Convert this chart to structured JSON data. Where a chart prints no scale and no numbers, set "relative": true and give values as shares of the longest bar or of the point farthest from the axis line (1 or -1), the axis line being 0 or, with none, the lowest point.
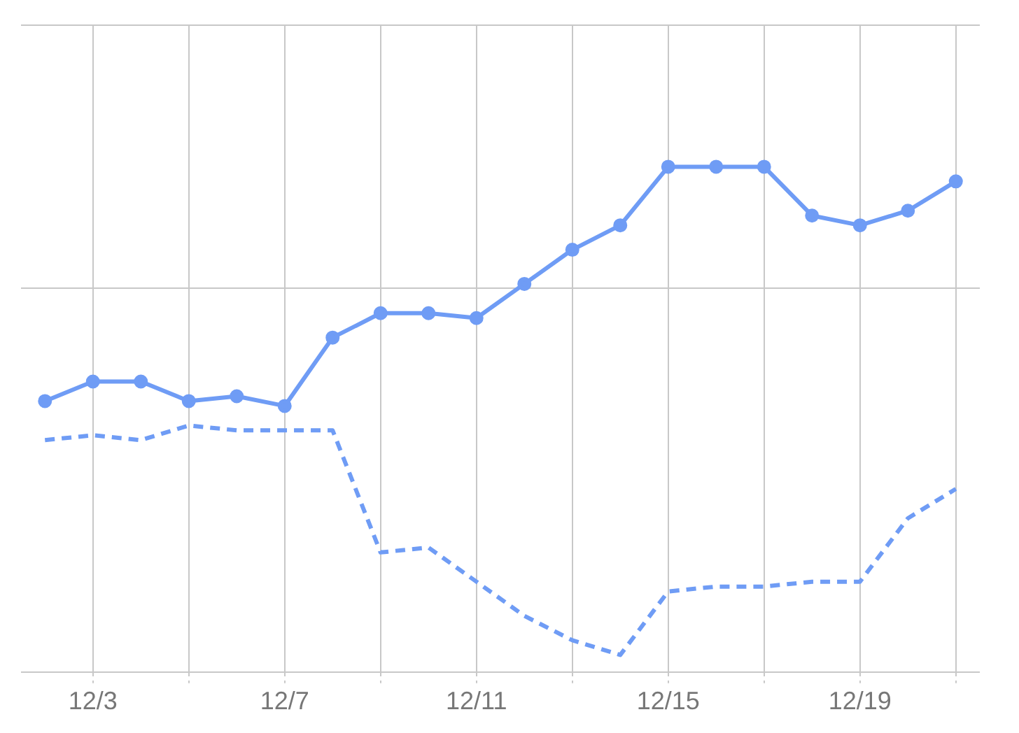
{
  "chart_data": {
    "type": "line",
    "relative": true,
    "grid": true,
    "legend": false,
    "categories": [
      null,
      "12/3",
      null,
      null,
      null,
      "12/7",
      null,
      null,
      null,
      "12/11",
      null,
      null,
      null,
      "12/15",
      null,
      null,
      null,
      "12/19",
      null,
      null
    ],
    "series": [
      {
        "color": "#6f9cf5",
        "marker": "circle",
        "line_style": "solid",
        "values": [
          0.52,
          0.56,
          0.56,
          0.52,
          0.53,
          0.51,
          0.65,
          0.7,
          0.7,
          0.69,
          0.76,
          0.83,
          0.88,
          1,
          1,
          1,
          0.9,
          0.88,
          0.91,
          0.97
        ]
      },
      {
        "color": "#6f9cf5",
        "marker": "none",
        "line_style": "dashed",
        "values": [
          0.44,
          0.45,
          0.44,
          0.47,
          0.46,
          0.46,
          0.46,
          0.21,
          0.22,
          0.15,
          0.08,
          0.03,
          0,
          0.13,
          0.14,
          0.14,
          0.15,
          0.15,
          0.28,
          0.34
        ]
      }
    ]
  }
}
